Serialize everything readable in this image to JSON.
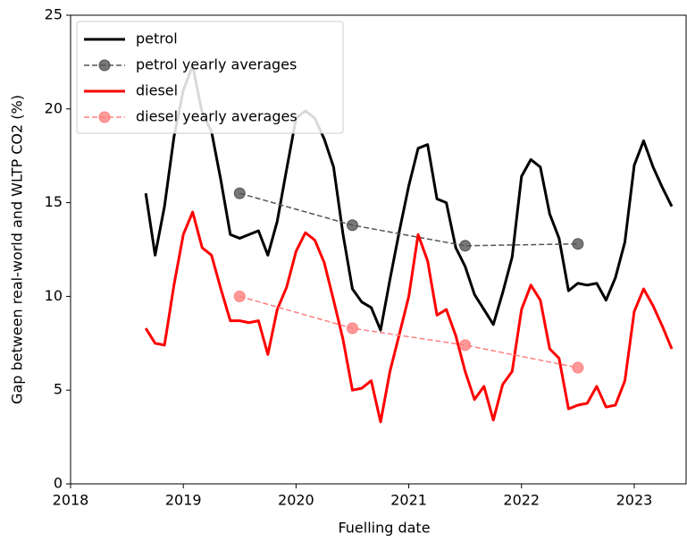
{
  "chart_data": {
    "type": "line",
    "xlabel": "Fuelling date",
    "ylabel": "Gap between real-world and WLTP CO2 (%)",
    "xlim": [
      2018,
      2023.46
    ],
    "xticks": [
      2018,
      2019,
      2020,
      2021,
      2022,
      2023
    ],
    "ylim": [
      0,
      25
    ],
    "yticks": [
      0,
      5,
      10,
      15,
      20,
      25
    ],
    "legend": "upper left",
    "series": [
      {
        "name": "petrol",
        "color": "#000000",
        "linestyle": "solid",
        "marker": "none",
        "x": [
          2018.667,
          2018.75,
          2018.833,
          2018.917,
          2019,
          2019.083,
          2019.167,
          2019.25,
          2019.333,
          2019.417,
          2019.5,
          2019.583,
          2019.667,
          2019.75,
          2019.833,
          2019.917,
          2020,
          2020.083,
          2020.167,
          2020.25,
          2020.333,
          2020.417,
          2020.5,
          2020.583,
          2020.667,
          2020.75,
          2020.833,
          2020.917,
          2021,
          2021.083,
          2021.167,
          2021.25,
          2021.333,
          2021.417,
          2021.5,
          2021.583,
          2021.667,
          2021.75,
          2021.833,
          2021.917,
          2022,
          2022.083,
          2022.167,
          2022.25,
          2022.333,
          2022.417,
          2022.5,
          2022.583,
          2022.667,
          2022.75,
          2022.833,
          2022.917,
          2023,
          2023.083,
          2023.167,
          2023.25,
          2023.333
        ],
        "values": [
          15.5,
          12.2,
          14.8,
          18.5,
          21.0,
          22.3,
          19.8,
          18.8,
          16.2,
          13.3,
          13.1,
          13.3,
          13.5,
          12.2,
          14.0,
          16.8,
          19.5,
          19.9,
          19.5,
          18.4,
          16.9,
          13.3,
          10.4,
          9.7,
          9.4,
          8.2,
          10.9,
          13.5,
          15.9,
          17.9,
          18.1,
          15.2,
          15.0,
          12.6,
          11.6,
          10.1,
          9.3,
          8.5,
          10.2,
          12.1,
          16.4,
          17.3,
          16.9,
          14.4,
          13.1,
          10.3,
          10.7,
          10.6,
          10.7,
          9.8,
          11.0,
          12.9,
          17.0,
          18.3,
          16.9,
          15.8,
          14.8
        ]
      },
      {
        "name": "petrol yearly averages",
        "color": "#555555",
        "linestyle": "dashed",
        "marker": "o",
        "x": [
          2019.5,
          2020.5,
          2021.5,
          2022.5
        ],
        "values": [
          15.5,
          13.8,
          12.7,
          12.8
        ]
      },
      {
        "name": "diesel",
        "color": "#ff0000",
        "linestyle": "solid",
        "marker": "none",
        "x": [
          2018.667,
          2018.75,
          2018.833,
          2018.917,
          2019,
          2019.083,
          2019.167,
          2019.25,
          2019.333,
          2019.417,
          2019.5,
          2019.583,
          2019.667,
          2019.75,
          2019.833,
          2019.917,
          2020,
          2020.083,
          2020.167,
          2020.25,
          2020.333,
          2020.417,
          2020.5,
          2020.583,
          2020.667,
          2020.75,
          2020.833,
          2020.917,
          2021,
          2021.083,
          2021.167,
          2021.25,
          2021.333,
          2021.417,
          2021.5,
          2021.583,
          2021.667,
          2021.75,
          2021.833,
          2021.917,
          2022,
          2022.083,
          2022.167,
          2022.25,
          2022.333,
          2022.417,
          2022.5,
          2022.583,
          2022.667,
          2022.75,
          2022.833,
          2022.917,
          2023,
          2023.083,
          2023.167,
          2023.25,
          2023.333
        ],
        "values": [
          8.3,
          7.5,
          7.4,
          10.6,
          13.3,
          14.5,
          12.6,
          12.2,
          10.4,
          8.7,
          8.7,
          8.6,
          8.7,
          6.9,
          9.3,
          10.5,
          12.4,
          13.4,
          13.0,
          11.8,
          9.8,
          7.7,
          5.0,
          5.1,
          5.5,
          3.3,
          6.0,
          8.0,
          10.0,
          13.3,
          11.9,
          9.0,
          9.3,
          7.9,
          6.0,
          4.5,
          5.2,
          3.4,
          5.3,
          6.0,
          9.3,
          10.6,
          9.8,
          7.2,
          6.7,
          4.0,
          4.2,
          4.3,
          5.2,
          4.1,
          4.2,
          5.5,
          9.2,
          10.4,
          9.5,
          8.4,
          7.2
        ]
      },
      {
        "name": "diesel yearly averages",
        "color": "#ff8080",
        "linestyle": "dashed",
        "marker": "o",
        "x": [
          2019.5,
          2020.5,
          2021.5,
          2022.5
        ],
        "values": [
          10.0,
          8.3,
          7.4,
          6.2
        ]
      }
    ]
  }
}
